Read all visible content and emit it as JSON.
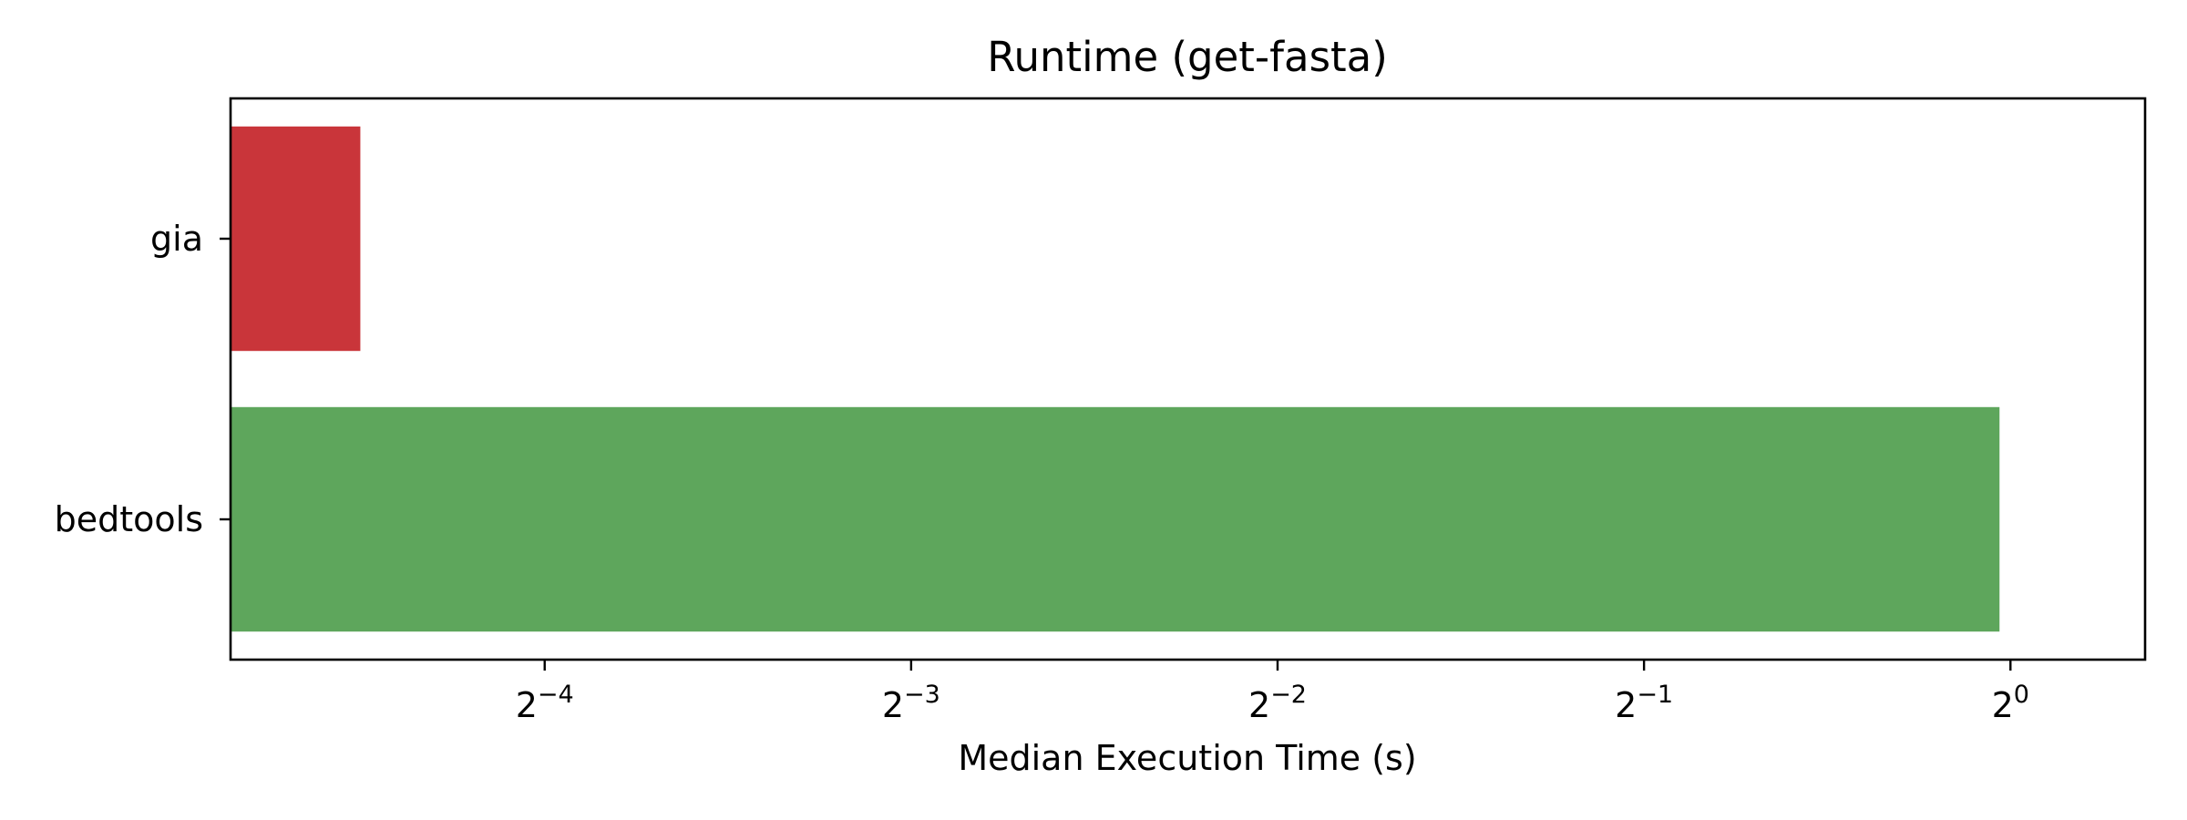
{
  "chart_data": {
    "type": "bar",
    "orientation": "horizontal",
    "title": "Runtime (get-fasta)",
    "xlabel": "Median Execution Time (s)",
    "ylabel": "",
    "x_scale": "log2",
    "xlim": [
      0.0345,
      1.29
    ],
    "x_ticks": [
      {
        "value": 0.0625,
        "base": "2",
        "exp": "−4"
      },
      {
        "value": 0.125,
        "base": "2",
        "exp": "−3"
      },
      {
        "value": 0.25,
        "base": "2",
        "exp": "−2"
      },
      {
        "value": 0.5,
        "base": "2",
        "exp": "−1"
      },
      {
        "value": 1,
        "base": "2",
        "exp": "0"
      }
    ],
    "categories": [
      "gia",
      "bedtools"
    ],
    "values": [
      0.0441,
      0.9795
    ],
    "colors": [
      "#c9353a",
      "#5ea65c"
    ],
    "grid": false,
    "legend": "none"
  }
}
